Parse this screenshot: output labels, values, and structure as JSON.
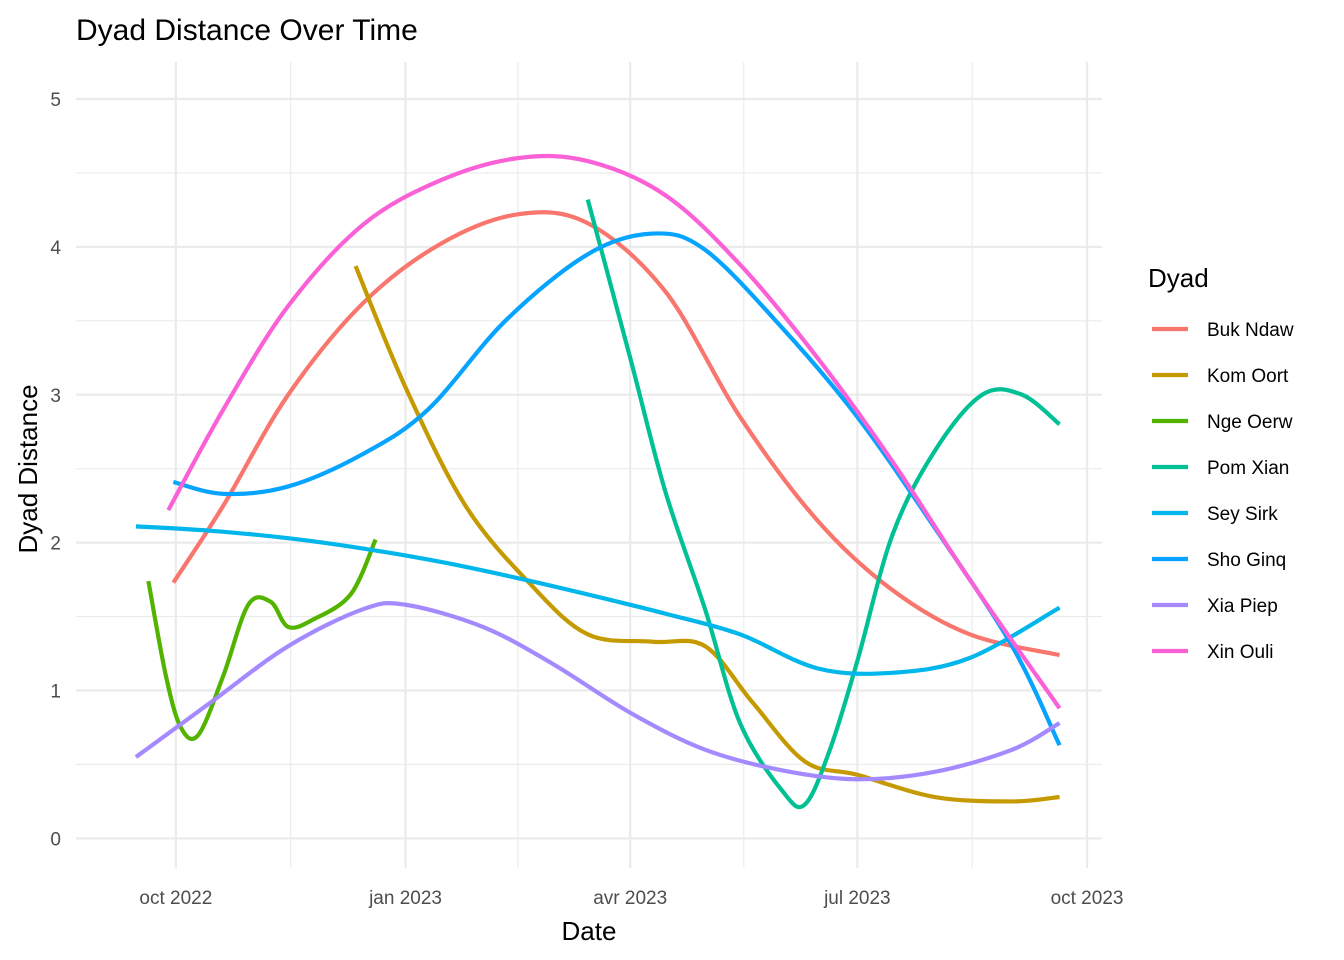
{
  "chart_data": {
    "type": "line",
    "title": "Dyad Distance Over Time",
    "xlabel": "Date",
    "ylabel": "Dyad Distance",
    "legend_title": "Dyad",
    "legend_position": "right",
    "grid": true,
    "xlim": [
      "2022-08-22",
      "2023-10-07"
    ],
    "ylim": [
      -0.2,
      5.25
    ],
    "x_ticks": [
      {
        "date": "2022-10-01",
        "label": "oct 2022"
      },
      {
        "date": "2023-01-01",
        "label": "jan 2023"
      },
      {
        "date": "2023-04-01",
        "label": "avr 2023"
      },
      {
        "date": "2023-07-01",
        "label": "jul 2023"
      },
      {
        "date": "2023-10-01",
        "label": "oct 2023"
      }
    ],
    "y_ticks": [
      0,
      1,
      2,
      3,
      4,
      5
    ],
    "series": [
      {
        "name": "Buk Ndaw",
        "color": "#F8766D",
        "points": [
          [
            "2022-09-30",
            1.73
          ],
          [
            "2022-10-20",
            2.25
          ],
          [
            "2022-11-15",
            3.0
          ],
          [
            "2022-12-15",
            3.62
          ],
          [
            "2023-01-15",
            4.02
          ],
          [
            "2023-02-15",
            4.22
          ],
          [
            "2023-03-15",
            4.16
          ],
          [
            "2023-04-15",
            3.7
          ],
          [
            "2023-05-15",
            2.85
          ],
          [
            "2023-06-15",
            2.15
          ],
          [
            "2023-07-15",
            1.68
          ],
          [
            "2023-08-15",
            1.38
          ],
          [
            "2023-09-20",
            1.24
          ]
        ]
      },
      {
        "name": "Kom Oort",
        "color": "#C49A00",
        "points": [
          [
            "2022-12-12",
            3.87
          ],
          [
            "2023-01-01",
            3.05
          ],
          [
            "2023-01-25",
            2.25
          ],
          [
            "2023-02-20",
            1.72
          ],
          [
            "2023-03-15",
            1.38
          ],
          [
            "2023-04-10",
            1.33
          ],
          [
            "2023-05-01",
            1.3
          ],
          [
            "2023-05-20",
            0.92
          ],
          [
            "2023-06-10",
            0.52
          ],
          [
            "2023-07-01",
            0.43
          ],
          [
            "2023-08-01",
            0.28
          ],
          [
            "2023-09-01",
            0.25
          ],
          [
            "2023-09-20",
            0.28
          ]
        ]
      },
      {
        "name": "Nge Oerw",
        "color": "#53B400",
        "points": [
          [
            "2022-09-20",
            1.74
          ],
          [
            "2022-09-27",
            1.1
          ],
          [
            "2022-10-03",
            0.75
          ],
          [
            "2022-10-10",
            0.7
          ],
          [
            "2022-10-20",
            1.1
          ],
          [
            "2022-10-30",
            1.58
          ],
          [
            "2022-11-08",
            1.6
          ],
          [
            "2022-11-15",
            1.43
          ],
          [
            "2022-11-25",
            1.48
          ],
          [
            "2022-12-10",
            1.65
          ],
          [
            "2022-12-20",
            2.02
          ]
        ]
      },
      {
        "name": "Pom Xian",
        "color": "#00C094",
        "points": [
          [
            "2023-03-15",
            4.32
          ],
          [
            "2023-04-01",
            3.25
          ],
          [
            "2023-04-15",
            2.35
          ],
          [
            "2023-05-01",
            1.55
          ],
          [
            "2023-05-15",
            0.78
          ],
          [
            "2023-06-01",
            0.32
          ],
          [
            "2023-06-10",
            0.23
          ],
          [
            "2023-06-20",
            0.6
          ],
          [
            "2023-07-01",
            1.2
          ],
          [
            "2023-07-15",
            2.05
          ],
          [
            "2023-08-01",
            2.62
          ],
          [
            "2023-08-20",
            3.0
          ],
          [
            "2023-09-05",
            3.0
          ],
          [
            "2023-09-20",
            2.8
          ]
        ]
      },
      {
        "name": "Sey Sirk",
        "color": "#00B6EB",
        "points": [
          [
            "2022-09-15",
            2.11
          ],
          [
            "2022-10-15",
            2.08
          ],
          [
            "2022-11-15",
            2.03
          ],
          [
            "2022-12-15",
            1.96
          ],
          [
            "2023-01-15",
            1.87
          ],
          [
            "2023-02-15",
            1.76
          ],
          [
            "2023-03-15",
            1.65
          ],
          [
            "2023-04-15",
            1.52
          ],
          [
            "2023-05-15",
            1.38
          ],
          [
            "2023-06-15",
            1.15
          ],
          [
            "2023-07-15",
            1.12
          ],
          [
            "2023-08-15",
            1.22
          ],
          [
            "2023-09-20",
            1.56
          ]
        ]
      },
      {
        "name": "Sho Ginq",
        "color": "#06A4FF",
        "points": [
          [
            "2022-09-30",
            2.41
          ],
          [
            "2022-10-20",
            2.33
          ],
          [
            "2022-11-15",
            2.38
          ],
          [
            "2022-12-15",
            2.6
          ],
          [
            "2023-01-10",
            2.9
          ],
          [
            "2023-02-10",
            3.5
          ],
          [
            "2023-03-15",
            3.95
          ],
          [
            "2023-04-10",
            4.09
          ],
          [
            "2023-05-01",
            3.98
          ],
          [
            "2023-06-01",
            3.45
          ],
          [
            "2023-07-01",
            2.85
          ],
          [
            "2023-08-01",
            2.1
          ],
          [
            "2023-09-01",
            1.3
          ],
          [
            "2023-09-20",
            0.63
          ]
        ]
      },
      {
        "name": "Xia Piep",
        "color": "#A58AFF",
        "points": [
          [
            "2022-09-15",
            0.55
          ],
          [
            "2022-10-15",
            0.92
          ],
          [
            "2022-11-15",
            1.3
          ],
          [
            "2022-12-15",
            1.55
          ],
          [
            "2023-01-01",
            1.58
          ],
          [
            "2023-02-01",
            1.43
          ],
          [
            "2023-03-01",
            1.18
          ],
          [
            "2023-04-01",
            0.85
          ],
          [
            "2023-05-01",
            0.6
          ],
          [
            "2023-06-01",
            0.46
          ],
          [
            "2023-07-01",
            0.4
          ],
          [
            "2023-08-01",
            0.45
          ],
          [
            "2023-09-01",
            0.6
          ],
          [
            "2023-09-20",
            0.78
          ]
        ]
      },
      {
        "name": "Xin Ouli",
        "color": "#FB61D7",
        "points": [
          [
            "2022-09-28",
            2.22
          ],
          [
            "2022-10-20",
            2.9
          ],
          [
            "2022-11-15",
            3.6
          ],
          [
            "2022-12-15",
            4.15
          ],
          [
            "2023-01-15",
            4.45
          ],
          [
            "2023-02-15",
            4.6
          ],
          [
            "2023-03-15",
            4.58
          ],
          [
            "2023-04-15",
            4.35
          ],
          [
            "2023-05-15",
            3.88
          ],
          [
            "2023-06-15",
            3.25
          ],
          [
            "2023-07-15",
            2.55
          ],
          [
            "2023-08-15",
            1.75
          ],
          [
            "2023-09-20",
            0.88
          ]
        ]
      }
    ]
  }
}
